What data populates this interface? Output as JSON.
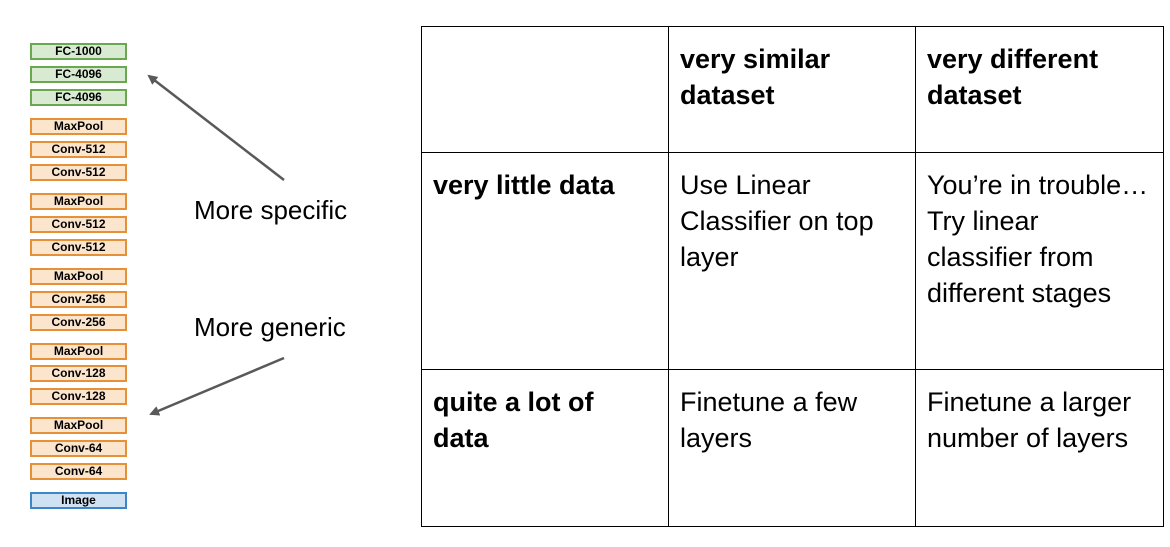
{
  "network": {
    "layers": [
      {
        "label": "FC-1000",
        "kind": "fc"
      },
      {
        "label": "FC-4096",
        "kind": "fc"
      },
      {
        "label": "FC-4096",
        "kind": "fc"
      },
      {
        "label": "MaxPool",
        "kind": "conv"
      },
      {
        "label": "Conv-512",
        "kind": "conv"
      },
      {
        "label": "Conv-512",
        "kind": "conv"
      },
      {
        "label": "MaxPool",
        "kind": "conv"
      },
      {
        "label": "Conv-512",
        "kind": "conv"
      },
      {
        "label": "Conv-512",
        "kind": "conv"
      },
      {
        "label": "MaxPool",
        "kind": "conv"
      },
      {
        "label": "Conv-256",
        "kind": "conv"
      },
      {
        "label": "Conv-256",
        "kind": "conv"
      },
      {
        "label": "MaxPool",
        "kind": "conv"
      },
      {
        "label": "Conv-128",
        "kind": "conv"
      },
      {
        "label": "Conv-128",
        "kind": "conv"
      },
      {
        "label": "MaxPool",
        "kind": "conv"
      },
      {
        "label": "Conv-64",
        "kind": "conv"
      },
      {
        "label": "Conv-64",
        "kind": "conv"
      },
      {
        "label": "Image",
        "kind": "img"
      }
    ],
    "more_specific_label": "More specific",
    "more_generic_label": "More generic"
  },
  "table": {
    "col_headers": [
      "",
      "very similar dataset",
      "very different dataset"
    ],
    "rows": [
      {
        "header": "very little data",
        "cells": [
          "Use Linear Classifier on top layer",
          "You’re in trouble… Try linear classifier from different stages"
        ]
      },
      {
        "header": "quite a lot of data",
        "cells": [
          "Finetune a few layers",
          "Finetune a larger number of layers"
        ]
      }
    ]
  },
  "colors": {
    "fc_fill": "#d9ead3",
    "fc_border": "#6aa84f",
    "conv_fill": "#fce5cd",
    "conv_border": "#e69138",
    "image_fill": "#cfe2f3",
    "image_border": "#3d85c6",
    "arrow": "#595959"
  }
}
